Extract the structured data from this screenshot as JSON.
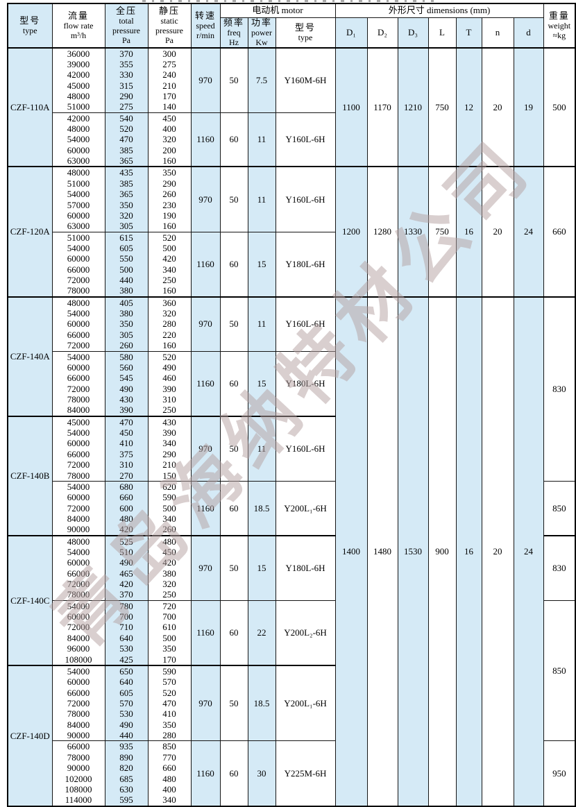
{
  "page": {
    "watermark": "青岛海纳特材公司"
  },
  "header": {
    "model": {
      "zh": "型号",
      "en": "type"
    },
    "flow": {
      "zh": "流量",
      "en1": "flow rate",
      "en2": "m³/h"
    },
    "total": {
      "zh": "全压",
      "en1": "total",
      "en2": "pressure",
      "en3": "Pa"
    },
    "static": {
      "zh": "静压",
      "en1": "static",
      "en2": "pressure",
      "en3": "Pa"
    },
    "speed": {
      "zh": "转速",
      "en1": "speed",
      "en2": "r/min"
    },
    "motor_group": "电动机  motor",
    "freq": {
      "zh": "频率",
      "en1": "freq",
      "en2": "Hz"
    },
    "power": {
      "zh": "功率",
      "en1": "power",
      "en2": "Kw"
    },
    "mtype": {
      "zh": "型号",
      "en": "type"
    },
    "dims_group": "外形尺寸   dimensions (mm)",
    "dims": [
      "D₁",
      "D₂",
      "D₃",
      "L",
      "T",
      "n",
      "d"
    ],
    "weight": {
      "zh": "重量",
      "en1": "weight",
      "en2": "≈kg"
    }
  },
  "blocks": [
    {
      "model": "CZF-110A",
      "subs": [
        {
          "speed": "970",
          "freq": "50",
          "power": "7.5",
          "motor": "Y160M-6H",
          "rows": [
            [
              "36000",
              "370",
              "300"
            ],
            [
              "39000",
              "355",
              "275"
            ],
            [
              "42000",
              "330",
              "240"
            ],
            [
              "45000",
              "315",
              "210"
            ],
            [
              "48000",
              "290",
              "170"
            ],
            [
              "51000",
              "275",
              "140"
            ]
          ]
        },
        {
          "speed": "1160",
          "freq": "60",
          "power": "11",
          "motor": "Y160L-6H",
          "rows": [
            [
              "42000",
              "540",
              "450"
            ],
            [
              "48000",
              "520",
              "400"
            ],
            [
              "54000",
              "470",
              "320"
            ],
            [
              "60000",
              "385",
              "200"
            ],
            [
              "63000",
              "365",
              "160"
            ]
          ]
        }
      ]
    },
    {
      "model": "CZF-120A",
      "subs": [
        {
          "speed": "970",
          "freq": "50",
          "power": "11",
          "motor": "Y160L-6H",
          "rows": [
            [
              "48000",
              "435",
              "350"
            ],
            [
              "51000",
              "385",
              "290"
            ],
            [
              "54000",
              "365",
              "260"
            ],
            [
              "57000",
              "350",
              "230"
            ],
            [
              "60000",
              "320",
              "190"
            ],
            [
              "63000",
              "305",
              "160"
            ]
          ]
        },
        {
          "speed": "1160",
          "freq": "60",
          "power": "15",
          "motor": "Y180L-6H",
          "rows": [
            [
              "51000",
              "615",
              "520"
            ],
            [
              "54000",
              "605",
              "500"
            ],
            [
              "60000",
              "550",
              "420"
            ],
            [
              "66000",
              "500",
              "340"
            ],
            [
              "72000",
              "440",
              "250"
            ],
            [
              "78000",
              "380",
              "160"
            ]
          ]
        }
      ]
    },
    {
      "model": "CZF-140A",
      "subs": [
        {
          "speed": "970",
          "freq": "50",
          "power": "11",
          "motor": "Y160L-6H",
          "rows": [
            [
              "48000",
              "405",
              "360"
            ],
            [
              "54000",
              "380",
              "320"
            ],
            [
              "60000",
              "350",
              "280"
            ],
            [
              "66000",
              "305",
              "220"
            ],
            [
              "72000",
              "260",
              "160"
            ]
          ]
        },
        {
          "speed": "1160",
          "freq": "60",
          "power": "15",
          "motor": "Y180L-6H",
          "rows": [
            [
              "54000",
              "580",
              "520"
            ],
            [
              "60000",
              "560",
              "490"
            ],
            [
              "66000",
              "545",
              "460"
            ],
            [
              "72000",
              "490",
              "390"
            ],
            [
              "78000",
              "430",
              "310"
            ],
            [
              "84000",
              "390",
              "250"
            ]
          ]
        }
      ]
    },
    {
      "model": "CZF-140B",
      "subs": [
        {
          "speed": "970",
          "freq": "50",
          "power": "11",
          "motor": "Y160L-6H",
          "rows": [
            [
              "45000",
              "470",
              "430"
            ],
            [
              "54000",
              "450",
              "390"
            ],
            [
              "60000",
              "410",
              "340"
            ],
            [
              "66000",
              "375",
              "290"
            ],
            [
              "72000",
              "310",
              "210"
            ],
            [
              "78000",
              "270",
              "150"
            ]
          ]
        },
        {
          "speed": "1160",
          "freq": "60",
          "power": "18.5",
          "motor": "Y200L₁-6H",
          "rows": [
            [
              "54000",
              "680",
              "620"
            ],
            [
              "60000",
              "660",
              "590"
            ],
            [
              "72000",
              "600",
              "500"
            ],
            [
              "84000",
              "480",
              "340"
            ],
            [
              "90000",
              "420",
              "260"
            ]
          ]
        }
      ]
    },
    {
      "model": "CZF-140C",
      "subs": [
        {
          "speed": "970",
          "freq": "50",
          "power": "15",
          "motor": "Y180L-6H",
          "rows": [
            [
              "48000",
              "525",
              "480"
            ],
            [
              "54000",
              "510",
              "450"
            ],
            [
              "60000",
              "490",
              "420"
            ],
            [
              "66000",
              "465",
              "380"
            ],
            [
              "72000",
              "420",
              "320"
            ],
            [
              "78000",
              "370",
              "250"
            ]
          ]
        },
        {
          "speed": "1160",
          "freq": "60",
          "power": "22",
          "motor": "Y200L₂-6H",
          "rows": [
            [
              "54000",
              "780",
              "720"
            ],
            [
              "60000",
              "700",
              "700"
            ],
            [
              "72000",
              "710",
              "610"
            ],
            [
              "84000",
              "640",
              "500"
            ],
            [
              "96000",
              "530",
              "350"
            ],
            [
              "108000",
              "425",
              "170"
            ]
          ]
        }
      ]
    },
    {
      "model": "CZF-140D",
      "subs": [
        {
          "speed": "970",
          "freq": "50",
          "power": "18.5",
          "motor": "Y200L₁-6H",
          "rows": [
            [
              "54000",
              "650",
              "590"
            ],
            [
              "60000",
              "640",
              "570"
            ],
            [
              "66000",
              "605",
              "520"
            ],
            [
              "72000",
              "570",
              "470"
            ],
            [
              "78000",
              "530",
              "410"
            ],
            [
              "84000",
              "490",
              "350"
            ],
            [
              "90000",
              "440",
              "280"
            ]
          ]
        },
        {
          "speed": "1160",
          "freq": "60",
          "power": "30",
          "motor": "Y225M-6H",
          "rows": [
            [
              "66000",
              "935",
              "850"
            ],
            [
              "78000",
              "890",
              "770"
            ],
            [
              "90000",
              "820",
              "660"
            ],
            [
              "102000",
              "685",
              "480"
            ],
            [
              "108000",
              "630",
              "400"
            ],
            [
              "114000",
              "595",
              "340"
            ]
          ]
        }
      ]
    }
  ],
  "dim_groups": [
    {
      "blocks": [
        0
      ],
      "D1": "1100",
      "D2": "1170",
      "D3": "1210",
      "L": "750",
      "T": "12",
      "n": "20",
      "d": "19"
    },
    {
      "blocks": [
        1
      ],
      "D1": "1200",
      "D2": "1280",
      "D3": "1330",
      "L": "750",
      "T": "16",
      "n": "20",
      "d": "24"
    },
    {
      "blocks": [
        2,
        3,
        4,
        5
      ],
      "D1": "1400",
      "D2": "1480",
      "D3": "1530",
      "L": "900",
      "T": "16",
      "n": "20",
      "d": "24"
    }
  ],
  "weight_groups": [
    {
      "rows": 11,
      "value": "500"
    },
    {
      "rows": 12,
      "value": "660"
    },
    {
      "rows": 17,
      "value": "830"
    },
    {
      "rows": 5,
      "value": "850"
    },
    {
      "rows": 6,
      "value": "830"
    },
    {
      "rows": 13,
      "value": "850"
    },
    {
      "rows": 6,
      "value": "950"
    }
  ]
}
